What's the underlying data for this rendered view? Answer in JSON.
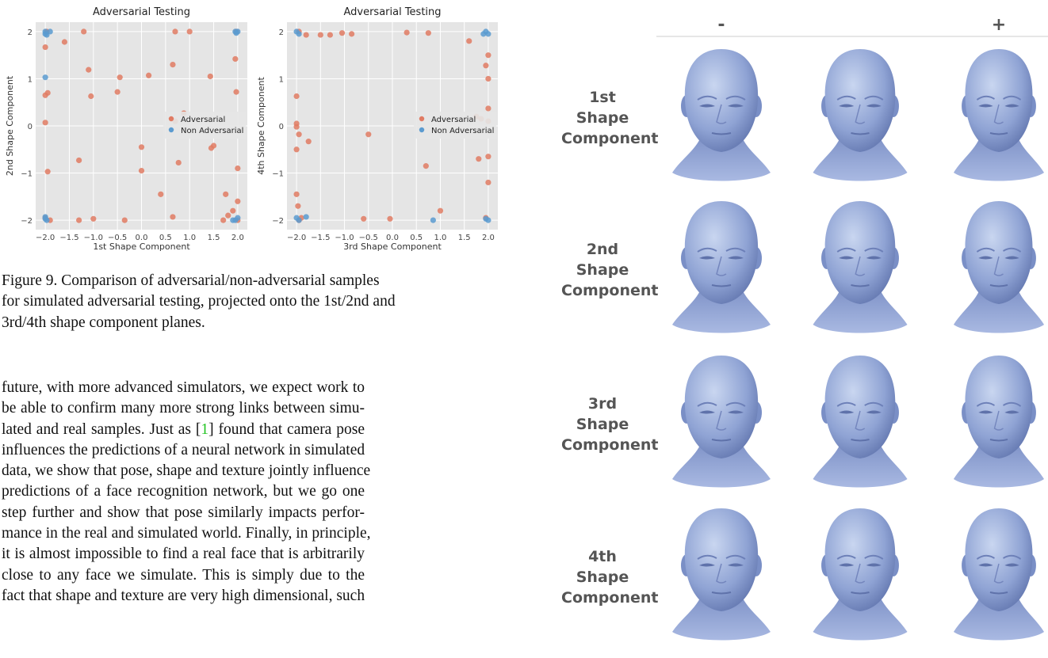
{
  "chart_data": [
    {
      "type": "scatter",
      "title": "Adversarial Testing",
      "x_label": "1st Shape Component",
      "y_label": "2nd Shape Component",
      "xlim": [
        -2.2,
        2.2
      ],
      "ylim": [
        -2.2,
        2.2
      ],
      "xticks": [
        {
          "value": -2.0,
          "label": "−2.0"
        },
        {
          "value": -1.5,
          "label": "−1.5"
        },
        {
          "value": -1.0,
          "label": "−1.0"
        },
        {
          "value": -0.5,
          "label": "−0.5"
        },
        {
          "value": 0.0,
          "label": "0.0"
        },
        {
          "value": 0.5,
          "label": "0.5"
        },
        {
          "value": 1.0,
          "label": "1.0"
        },
        {
          "value": 1.5,
          "label": "1.5"
        },
        {
          "value": 2.0,
          "label": "2.0"
        }
      ],
      "yticks": [
        {
          "value": -2,
          "label": "−2"
        },
        {
          "value": -1,
          "label": "−1"
        },
        0,
        1,
        2
      ],
      "grid": true,
      "legend": "right",
      "series": [
        {
          "name": "Adversarial",
          "color": "#e07b63",
          "x": [
            -1.97,
            -1.2,
            -1.6,
            -2.0,
            -1.1,
            -0.45,
            0.15,
            -1.05,
            -0.5,
            -2.0,
            -1.95,
            0.7,
            1.0,
            0.65,
            1.95,
            1.97,
            1.43,
            0.88,
            0.7,
            -2.0,
            0.0,
            1.5,
            1.45,
            -1.3,
            -1.95,
            0.0,
            0.77,
            2.0,
            0.4,
            1.75,
            2.0,
            0.65,
            1.9,
            1.8,
            -1.3,
            -1.0,
            -0.35,
            1.7,
            2.0,
            -1.9,
            -2.0,
            1.97
          ],
          "values": [
            2.0,
            2.0,
            1.78,
            1.67,
            1.19,
            1.03,
            1.07,
            0.63,
            0.72,
            0.65,
            0.7,
            2.0,
            2.0,
            1.3,
            1.42,
            0.72,
            1.05,
            0.27,
            0.1,
            0.07,
            -0.45,
            -0.42,
            -0.47,
            -0.73,
            -0.97,
            -0.95,
            -0.78,
            -0.9,
            -1.45,
            -1.45,
            -1.6,
            -1.93,
            -1.8,
            -1.9,
            -2.0,
            -1.97,
            -2.0,
            -2.0,
            -2.0,
            -2.0,
            -1.95,
            2.0
          ]
        },
        {
          "name": "Non Adversarial",
          "color": "#5b9bd0",
          "x": [
            -2.0,
            -1.97,
            -2.0,
            -1.9,
            -2.0,
            1.97,
            2.0,
            1.95,
            -2.0,
            -1.97,
            -2.0,
            1.95,
            2.0,
            1.9
          ],
          "values": [
            2.0,
            1.93,
            1.95,
            2.0,
            1.03,
            1.97,
            2.0,
            2.0,
            -1.93,
            -2.0,
            -1.97,
            -2.0,
            -1.95,
            -2.0
          ]
        }
      ]
    },
    {
      "type": "scatter",
      "title": "Adversarial Testing",
      "x_label": "3rd Shape Component",
      "y_label": "4th Shape Component",
      "xlim": [
        -2.2,
        2.2
      ],
      "ylim": [
        -2.2,
        2.2
      ],
      "xticks": [
        {
          "value": -2.0,
          "label": "−2.0"
        },
        {
          "value": -1.5,
          "label": "−1.5"
        },
        {
          "value": -1.0,
          "label": "−1.0"
        },
        {
          "value": -0.5,
          "label": "−0.5"
        },
        {
          "value": 0.0,
          "label": "0.0"
        },
        {
          "value": 0.5,
          "label": "0.5"
        },
        {
          "value": 1.0,
          "label": "1.0"
        },
        {
          "value": 1.5,
          "label": "1.5"
        },
        {
          "value": 2.0,
          "label": "2.0"
        }
      ],
      "yticks": [
        {
          "value": -2,
          "label": "−2"
        },
        {
          "value": -1,
          "label": "−1"
        },
        0,
        1,
        2
      ],
      "grid": true,
      "legend": "right",
      "series": [
        {
          "name": "Adversarial",
          "color": "#e07b63",
          "x": [
            -1.95,
            -1.8,
            -1.5,
            -1.3,
            -1.05,
            -0.85,
            0.3,
            0.75,
            1.6,
            2.0,
            1.95,
            2.0,
            -2.0,
            -2.0,
            -2.0,
            -1.95,
            -1.75,
            -2.0,
            -0.5,
            1.75,
            1.85,
            2.0,
            2.0,
            1.8,
            2.0,
            0.7,
            2.0,
            -2.0,
            -1.97,
            1.0,
            -0.6,
            -0.05,
            1.95,
            -1.95,
            -1.9
          ],
          "values": [
            2.0,
            1.93,
            1.93,
            1.93,
            1.97,
            1.95,
            1.98,
            1.97,
            1.8,
            1.5,
            1.28,
            1.0,
            0.63,
            0.05,
            -0.02,
            -0.18,
            -0.33,
            -0.5,
            -0.18,
            0.2,
            0.15,
            0.37,
            0.1,
            -0.7,
            -0.65,
            -0.85,
            -1.2,
            -1.45,
            -1.7,
            -1.8,
            -1.97,
            -1.97,
            -1.95,
            -2.0,
            -1.95
          ]
        },
        {
          "name": "Non Adversarial",
          "color": "#5b9bd0",
          "x": [
            -2.0,
            -1.95,
            1.95,
            2.0,
            1.9,
            -2.0,
            -1.95,
            -1.8,
            0.85,
            1.95,
            2.0
          ],
          "values": [
            2.0,
            1.95,
            2.0,
            1.95,
            1.95,
            -1.95,
            -2.0,
            -1.93,
            -2.0,
            -1.97,
            -2.0
          ]
        }
      ]
    }
  ],
  "caption": {
    "lines": [
      "Figure 9.  Comparison of adversarial/non-adversarial samples",
      "for simulated adversarial testing, projected onto the 1st/2nd and",
      "3rd/4th shape component planes."
    ]
  },
  "body": {
    "lines_before": [
      "future, with more advanced simulators, we expect work to",
      "be able to confirm many more strong links between simu-"
    ],
    "cite_line": {
      "before": "lated and real samples.  Just as [",
      "cite": "1",
      "after": "] found that camera pose"
    },
    "lines_after": [
      "influences the predictions of a neural network in simulated",
      "data, we show that pose, shape and texture jointly influence",
      "predictions of a face recognition network, but we go one",
      "step further and show that pose similarly impacts perfor-",
      "mance in the real and simulated world. Finally, in principle,",
      "it is almost impossible to find a real face that is arbitrarily",
      "close to any face we simulate.  This is simply due to the",
      "fact that shape and texture are very high dimensional, such"
    ]
  },
  "figure": {
    "columns": [
      "-",
      "+"
    ],
    "rows": [
      "1st Shape Component",
      "2nd Shape Component",
      "3rd Shape Component",
      "4th Shape Component"
    ]
  }
}
